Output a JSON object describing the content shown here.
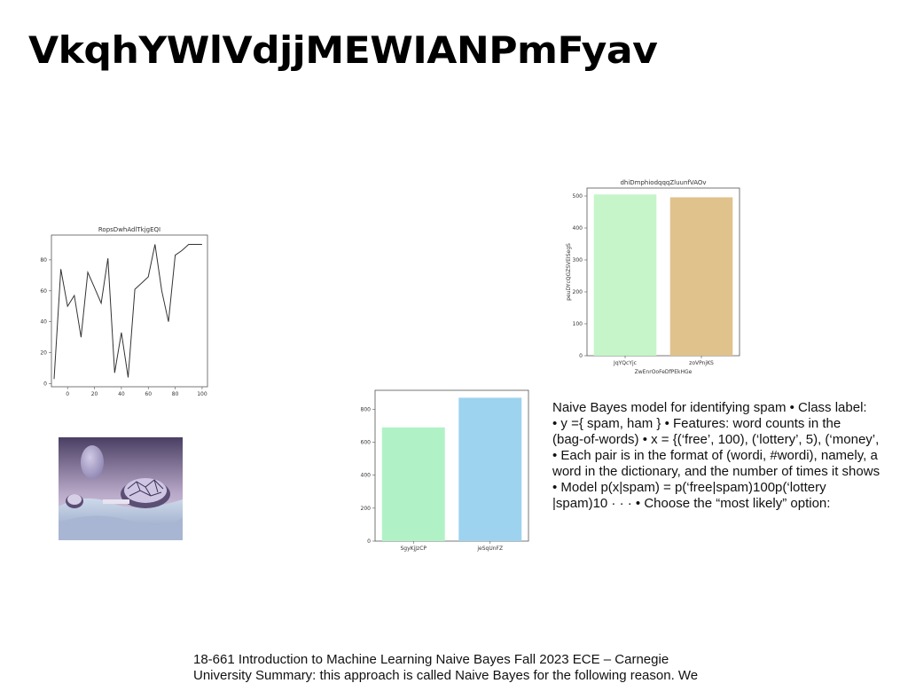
{
  "slide": {
    "title": "VkqhYWlVdjjMEWIANPmFyav",
    "body_text": "Naive Bayes model for identifying spam • Class label:\n• y ={ spam, ham } • Features: word counts in the\n(bag-of-words) • x = {(‘free’, 100), (‘lottery’, 5), (‘money’,\n• Each pair is in the format of (wordi, #wordi), namely, a\nword in the dictionary, and the number of times it shows\n• Model p(x|spam) = p(‘free|spam)100p(‘lottery\n|spam)10 · · · • Choose the “most likely” option:",
    "footer_text": "18-661 Introduction to Machine Learning Naive Bayes Fall 2023 ECE – Carnegie\nUniversity Summary: this approach is called Naive Bayes for the following reason. We"
  },
  "chart_data": [
    {
      "type": "line",
      "title": "RopsDwhAdlTkjgEQI",
      "xlabel": "",
      "ylabel": "",
      "x": [
        -10,
        -5,
        0,
        5,
        10,
        15,
        20,
        25,
        30,
        35,
        40,
        45,
        50,
        55,
        60,
        65,
        70,
        75,
        80,
        85,
        90,
        95,
        100
      ],
      "y": [
        3,
        74,
        50,
        57,
        30,
        72,
        62,
        52,
        81,
        7,
        33,
        4,
        61,
        65,
        69,
        90,
        60,
        40,
        83,
        86,
        90,
        90,
        90
      ],
      "xlim": [
        -12,
        104
      ],
      "ylim": [
        -2,
        96
      ],
      "xticks": [
        0,
        20,
        40,
        60,
        80,
        100
      ],
      "yticks": [
        0,
        20,
        40,
        60,
        80
      ],
      "color": "#333333"
    },
    {
      "type": "bar",
      "title": "dhiDmphiodqqqZluunfVAOv",
      "xlabel": "ZwEnrOoFeDfPEkHGe",
      "ylabel": "peuDYcQGZSVEISegS",
      "categories": [
        "JqYQcYjc",
        "zoVPnjKS"
      ],
      "values": [
        505,
        496
      ],
      "colors": [
        "#c5f5c8",
        "#e0c28c"
      ],
      "ylim": [
        0,
        525
      ],
      "yticks": [
        0,
        100,
        200,
        300,
        400,
        500
      ]
    },
    {
      "type": "bar",
      "title": "",
      "xlabel": "",
      "ylabel": "",
      "categories": [
        "SgyKjJzCP",
        "jeSqUnFZ"
      ],
      "values": [
        690,
        870
      ],
      "colors": [
        "#b0f2c6",
        "#9dd3ef"
      ],
      "ylim": [
        0,
        915
      ],
      "yticks": [
        0,
        200,
        400,
        600,
        800
      ]
    }
  ]
}
